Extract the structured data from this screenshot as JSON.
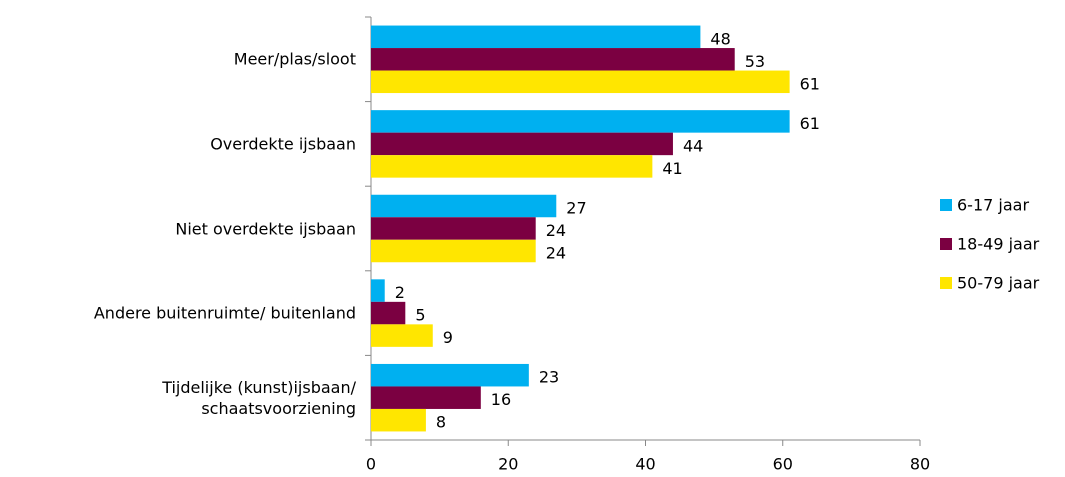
{
  "chart_data": {
    "type": "bar",
    "orientation": "horizontal",
    "categories": [
      "Meer/plas/sloot",
      "Overdekte ijsbaan",
      "Niet overdekte ijsbaan",
      "Andere buitenruimte/ buitenland",
      "Tijdelijke (kunst)ijsbaan/ schaatsvoorziening"
    ],
    "series": [
      {
        "name": "6-17 jaar",
        "color": "#00b0f0",
        "values": [
          48,
          61,
          27,
          2,
          23
        ]
      },
      {
        "name": "18-49 jaar",
        "color": "#7b0041",
        "values": [
          53,
          44,
          24,
          5,
          16
        ]
      },
      {
        "name": "50-79 jaar",
        "color": "#ffe600",
        "values": [
          61,
          41,
          24,
          9,
          8
        ]
      }
    ],
    "xlim": [
      0,
      80
    ],
    "xticks": [
      0,
      20,
      40,
      60,
      80
    ],
    "grid": false,
    "legend": "right"
  }
}
